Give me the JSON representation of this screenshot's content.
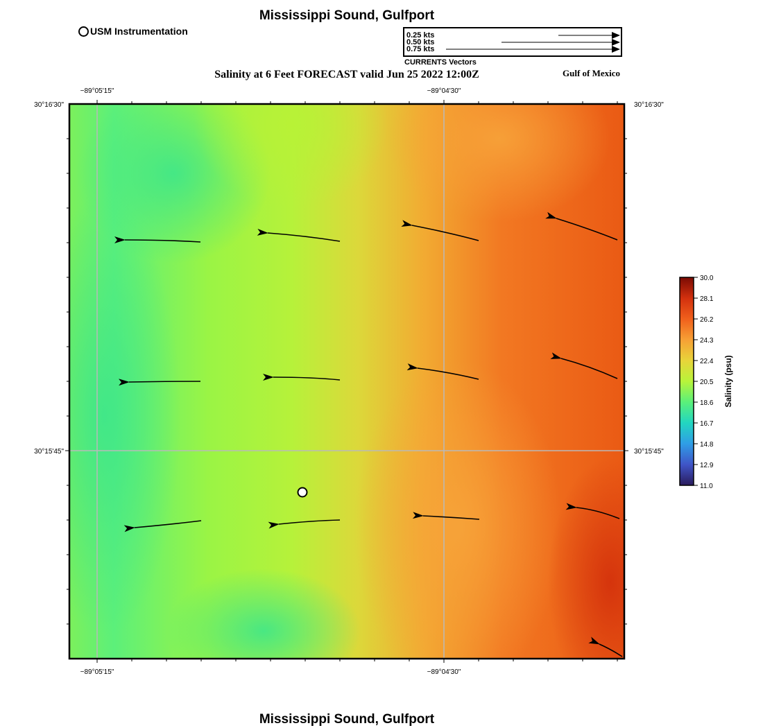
{
  "title_top": "Mississippi Sound, Gulfport",
  "title_bottom": "Mississippi Sound, Gulfport",
  "subtitle": "Salinity at 6 Feet FORECAST valid Jun 25 2022 12:00Z",
  "station_legend": {
    "label": "USM Instrumentation",
    "icon": "hollow-circle-icon"
  },
  "vector_legend": {
    "entries": [
      "0.25 kts",
      "0.50 kts",
      "0.75 kts"
    ],
    "caption": "CURRENTS Vectors"
  },
  "region_label": "Gulf of Mexico",
  "axes": {
    "top_ticks": [
      "−89°05'15\"",
      "−89°04'30\""
    ],
    "bottom_ticks": [
      "−89°05'15\"",
      "−89°04'30\""
    ],
    "left_ticks": [
      "30°16'30\"",
      "30°15'45\""
    ],
    "right_ticks": [
      "30°16'30\"",
      "30°15'45\""
    ]
  },
  "colorbar": {
    "label": "Salinity (psu)",
    "ticks": [
      "30.0",
      "28.1",
      "26.2",
      "24.3",
      "22.4",
      "20.5",
      "18.6",
      "16.7",
      "14.8",
      "12.9",
      "11.0"
    ],
    "min": 11.0,
    "max": 30.0,
    "colors": [
      "#2a1b5c",
      "#3f55c8",
      "#2f9de6",
      "#22d6c0",
      "#5af07a",
      "#b8f43a",
      "#e8d43a",
      "#f7a035",
      "#f0601c",
      "#d2300e",
      "#7a0b04"
    ]
  }
}
